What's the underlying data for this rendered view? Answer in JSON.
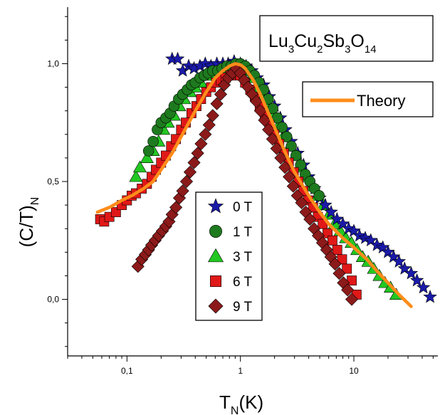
{
  "chart_data": {
    "type": "scatter",
    "title": "",
    "annotation": {
      "base": [
        "Lu",
        "Cu",
        "Sb",
        "O"
      ],
      "subs": [
        "3",
        "2",
        "3",
        "14"
      ]
    },
    "xlabel": {
      "main": "T",
      "sub": "N",
      "rest": "(K)"
    },
    "ylabel": {
      "main": "(C/T)",
      "sub": "N"
    },
    "x_scale": "log",
    "xlim": [
      0.03,
      55
    ],
    "ylim": [
      -0.24,
      1.24
    ],
    "x_ticks": [
      {
        "value": 0.1,
        "label": "0,1"
      },
      {
        "value": 1,
        "label": "1"
      },
      {
        "value": 10,
        "label": "10"
      }
    ],
    "y_ticks": [
      {
        "value": 0.0,
        "label": "0,0"
      },
      {
        "value": 0.5,
        "label": "0,5"
      },
      {
        "value": 1.0,
        "label": "1,0"
      }
    ],
    "legend_position": "center",
    "theory_legend_position": "top-right",
    "series": [
      {
        "name": "0 T",
        "marker": "star",
        "color": "#1a1aa8",
        "x": [
          0.25,
          0.28,
          0.31,
          0.35,
          0.39,
          0.44,
          0.49,
          0.55,
          0.62,
          0.7,
          0.78,
          0.88,
          1.0,
          1.12,
          1.26,
          1.4,
          1.6,
          1.8,
          2.0,
          2.25,
          2.5,
          2.8,
          3.2,
          3.6,
          4.0,
          4.5,
          5.0,
          5.6,
          6.3,
          7.1,
          8.0,
          9.0,
          10.0,
          11.2,
          12.6,
          14.1,
          16.0,
          18.0,
          20.0,
          22.4,
          25.0,
          28.0,
          32.0,
          36.0,
          41.0,
          47.0
        ],
        "y": [
          1.02,
          1.02,
          0.97,
          0.99,
          0.98,
          0.99,
          1.0,
          0.99,
          1.0,
          1.0,
          1.0,
          1.01,
          1.0,
          0.99,
          0.97,
          0.94,
          0.91,
          0.86,
          0.82,
          0.77,
          0.72,
          0.67,
          0.62,
          0.57,
          0.52,
          0.47,
          0.43,
          0.4,
          0.37,
          0.34,
          0.32,
          0.3,
          0.29,
          0.27,
          0.26,
          0.25,
          0.23,
          0.22,
          0.2,
          0.18,
          0.16,
          0.13,
          0.11,
          0.08,
          0.05,
          0.01
        ]
      },
      {
        "name": "1 T",
        "marker": "circle",
        "color": "#1e7a1e",
        "x": [
          0.155,
          0.17,
          0.185,
          0.2,
          0.22,
          0.24,
          0.26,
          0.285,
          0.31,
          0.34,
          0.37,
          0.4,
          0.44,
          0.48,
          0.52,
          0.57,
          0.63,
          0.69,
          0.76,
          0.83,
          0.91,
          1.0,
          1.1,
          1.21,
          1.33,
          1.46,
          1.6,
          1.76,
          1.93,
          2.12,
          2.33,
          2.56,
          2.81,
          3.09,
          3.39,
          3.73,
          4.1,
          4.5,
          4.94
        ],
        "y": [
          0.63,
          0.67,
          0.72,
          0.75,
          0.77,
          0.79,
          0.82,
          0.85,
          0.87,
          0.89,
          0.91,
          0.92,
          0.94,
          0.95,
          0.96,
          0.97,
          0.97,
          0.98,
          0.99,
          0.99,
          1.0,
          1.0,
          0.99,
          0.97,
          0.95,
          0.92,
          0.89,
          0.85,
          0.81,
          0.77,
          0.73,
          0.69,
          0.65,
          0.61,
          0.57,
          0.53,
          0.5,
          0.47,
          0.44
        ]
      },
      {
        "name": "3 T",
        "marker": "triangle",
        "color": "#22c722",
        "x": [
          0.12,
          0.13,
          0.15,
          0.17,
          0.19,
          0.21,
          0.23,
          0.26,
          0.29,
          0.32,
          0.36,
          0.4,
          0.45,
          0.5,
          0.56,
          0.63,
          0.7,
          0.79,
          0.88,
          0.99,
          1.1,
          1.24,
          1.39,
          1.55,
          1.74,
          1.95,
          2.18,
          2.44,
          2.73,
          3.06,
          3.43,
          3.84,
          4.3,
          4.82,
          5.4,
          6.05,
          6.77,
          7.59,
          8.5,
          9.52,
          10.66,
          11.94,
          13.38,
          14.98,
          16.78,
          18.79,
          21.05,
          23.6
        ],
        "y": [
          0.52,
          0.56,
          0.6,
          0.63,
          0.67,
          0.72,
          0.75,
          0.78,
          0.82,
          0.85,
          0.88,
          0.9,
          0.92,
          0.95,
          0.96,
          0.97,
          0.98,
          0.98,
          0.99,
          0.99,
          0.97,
          0.94,
          0.9,
          0.87,
          0.83,
          0.78,
          0.74,
          0.7,
          0.65,
          0.61,
          0.56,
          0.52,
          0.48,
          0.44,
          0.4,
          0.36,
          0.32,
          0.29,
          0.26,
          0.24,
          0.21,
          0.18,
          0.16,
          0.13,
          0.1,
          0.07,
          0.05,
          0.02
        ]
      },
      {
        "name": "6 T",
        "marker": "square",
        "color": "#e01818",
        "x": [
          0.058,
          0.063,
          0.07,
          0.08,
          0.09,
          0.1,
          0.11,
          0.12,
          0.135,
          0.15,
          0.165,
          0.18,
          0.2,
          0.22,
          0.245,
          0.27,
          0.3,
          0.33,
          0.37,
          0.41,
          0.45,
          0.5,
          0.55,
          0.61,
          0.67,
          0.74,
          0.82,
          0.9,
          1.0,
          1.1,
          1.22,
          1.34,
          1.48,
          1.64,
          1.8,
          1.99,
          2.2,
          2.42,
          2.67,
          2.95,
          3.25,
          3.59,
          3.96,
          4.37,
          4.82,
          5.31,
          5.86,
          6.47,
          7.14,
          7.87,
          8.68,
          9.58,
          10.57
        ],
        "y": [
          0.34,
          0.33,
          0.35,
          0.37,
          0.4,
          0.42,
          0.44,
          0.45,
          0.47,
          0.49,
          0.52,
          0.55,
          0.58,
          0.61,
          0.65,
          0.68,
          0.72,
          0.75,
          0.79,
          0.82,
          0.85,
          0.88,
          0.9,
          0.92,
          0.93,
          0.94,
          0.95,
          0.96,
          0.95,
          0.92,
          0.89,
          0.86,
          0.82,
          0.78,
          0.74,
          0.7,
          0.66,
          0.62,
          0.58,
          0.54,
          0.5,
          0.46,
          0.42,
          0.39,
          0.35,
          0.32,
          0.28,
          0.25,
          0.21,
          0.17,
          0.13,
          0.08,
          0.02
        ]
      },
      {
        "name": "9 T",
        "marker": "diamond",
        "color": "#8c1a1a",
        "x": [
          0.125,
          0.135,
          0.145,
          0.155,
          0.165,
          0.177,
          0.19,
          0.205,
          0.22,
          0.235,
          0.25,
          0.27,
          0.29,
          0.31,
          0.335,
          0.36,
          0.39,
          0.42,
          0.45,
          0.49,
          0.53,
          0.57,
          0.62,
          0.67,
          0.72,
          0.78,
          0.85,
          0.92,
          1.0,
          1.08,
          1.17,
          1.27,
          1.38,
          1.5,
          1.63,
          1.77,
          1.92,
          2.09,
          2.27,
          2.47,
          2.69,
          2.92,
          3.18,
          3.46,
          3.77,
          4.1,
          4.46,
          4.86,
          5.29,
          5.76,
          6.27,
          6.83,
          7.43,
          8.09,
          8.8,
          9.58
        ],
        "y": [
          0.14,
          0.17,
          0.19,
          0.21,
          0.23,
          0.25,
          0.27,
          0.29,
          0.31,
          0.33,
          0.36,
          0.39,
          0.43,
          0.46,
          0.5,
          0.54,
          0.58,
          0.62,
          0.66,
          0.7,
          0.74,
          0.78,
          0.83,
          0.87,
          0.91,
          0.94,
          0.96,
          0.98,
          0.96,
          0.93,
          0.9,
          0.87,
          0.84,
          0.8,
          0.76,
          0.72,
          0.68,
          0.64,
          0.6,
          0.56,
          0.52,
          0.48,
          0.44,
          0.41,
          0.37,
          0.34,
          0.3,
          0.27,
          0.24,
          0.21,
          0.18,
          0.15,
          0.11,
          0.07,
          0.04,
          0.0
        ]
      }
    ],
    "theory": {
      "name": "Theory",
      "color": "#ff8c1a",
      "x": [
        0.055,
        0.07,
        0.09,
        0.11,
        0.14,
        0.17,
        0.2,
        0.25,
        0.3,
        0.4,
        0.5,
        0.6,
        0.7,
        0.8,
        0.9,
        1.0,
        1.1,
        1.3,
        1.5,
        2.0,
        2.5,
        3.0,
        4.0,
        5.0,
        6.0,
        8.0,
        10.0,
        13.0,
        16.0,
        20.0,
        25.0,
        32.0
      ],
      "y": [
        0.37,
        0.39,
        0.42,
        0.44,
        0.47,
        0.5,
        0.55,
        0.62,
        0.69,
        0.8,
        0.88,
        0.94,
        0.97,
        0.99,
        1.0,
        0.995,
        0.98,
        0.93,
        0.87,
        0.73,
        0.62,
        0.54,
        0.44,
        0.37,
        0.32,
        0.26,
        0.22,
        0.17,
        0.12,
        0.07,
        0.02,
        -0.03
      ]
    }
  }
}
